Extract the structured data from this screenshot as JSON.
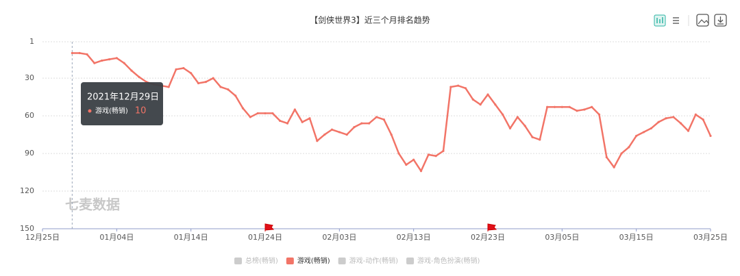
{
  "chart_data": {
    "type": "line",
    "title": "【剑侠世界3】近三个月排名趋势",
    "x": [
      "12月29日",
      "12月30日",
      "12月31日",
      "01月01日",
      "01月02日",
      "01月03日",
      "01月04日",
      "01月05日",
      "01月06日",
      "01月07日",
      "01月08日",
      "01月09日",
      "01月10日",
      "01月11日",
      "01月12日",
      "01月13日",
      "01月14日",
      "01月15日",
      "01月16日",
      "01月17日",
      "01月18日",
      "01月19日",
      "01月20日",
      "01月21日",
      "01月22日",
      "01月23日",
      "01月24日",
      "01月25日",
      "01月26日",
      "01月27日",
      "01月28日",
      "01月29日",
      "01月30日",
      "01月31日",
      "02月01日",
      "02月02日",
      "02月03日",
      "02月04日",
      "02月05日",
      "02月06日",
      "02月07日",
      "02月08日",
      "02月09日",
      "02月10日",
      "02月11日",
      "02月12日",
      "02月13日",
      "02月14日",
      "02月15日",
      "02月16日",
      "02月17日",
      "02月18日",
      "02月19日",
      "02月20日",
      "02月21日",
      "02月22日",
      "02月23日",
      "02月24日",
      "02月25日",
      "02月26日",
      "02月27日",
      "02月28日",
      "03月01日",
      "03月02日",
      "03月03日",
      "03月04日",
      "03月05日",
      "03月06日",
      "03月07日",
      "03月08日",
      "03月09日",
      "03月10日",
      "03月11日",
      "03月12日",
      "03月13日",
      "03月14日",
      "03月15日",
      "03月16日",
      "03月17日",
      "03月18日",
      "03月19日",
      "03月20日",
      "03月21日",
      "03月22日",
      "03月23日",
      "03月24日",
      "03月25日"
    ],
    "series": [
      {
        "name": "总榜(畅销)",
        "color": "#cccccc",
        "visible": false,
        "values": null
      },
      {
        "name": "游戏(畅销)",
        "color": "#f27467",
        "visible": true,
        "values": [
          10,
          10,
          11,
          18,
          16,
          15,
          14,
          18,
          24,
          29,
          33,
          35,
          36,
          37,
          23,
          22,
          26,
          34,
          33,
          30,
          37,
          39,
          44,
          54,
          61,
          58,
          58,
          58,
          64,
          66,
          55,
          65,
          62,
          80,
          75,
          71,
          73,
          75,
          69,
          66,
          66,
          61,
          63,
          75,
          90,
          99,
          95,
          104,
          91,
          92,
          88,
          37,
          36,
          38,
          47,
          51,
          43,
          51,
          59,
          70,
          61,
          68,
          77,
          79,
          53,
          53,
          53,
          53,
          56,
          55,
          53,
          59,
          93,
          101,
          90,
          85,
          76,
          73,
          70,
          65,
          62,
          61,
          66,
          72,
          59,
          63,
          76
        ]
      },
      {
        "name": "游戏-动作(畅销)",
        "color": "#cccccc",
        "visible": false,
        "values": null
      },
      {
        "name": "游戏-角色扮演(畅销)",
        "color": "#cccccc",
        "visible": false,
        "values": null
      }
    ],
    "xlim": [
      "12月25日",
      "03月25日"
    ],
    "xticks": [
      "12月25日",
      "01月04日",
      "01月14日",
      "01月24日",
      "02月03日",
      "02月13日",
      "02月23日",
      "03月05日",
      "03月15日",
      "03月25日"
    ],
    "ylim": [
      1,
      150
    ],
    "y_inverted": true,
    "yticks": [
      1,
      30,
      60,
      90,
      120,
      150
    ],
    "grid": true,
    "event_flags": [
      "01月24日",
      "02月23日"
    ],
    "watermark": "七麦数据",
    "tooltip": {
      "x_index": 0,
      "date": "2021年12月29日",
      "series": "游戏(畅销)",
      "value": 10
    }
  }
}
